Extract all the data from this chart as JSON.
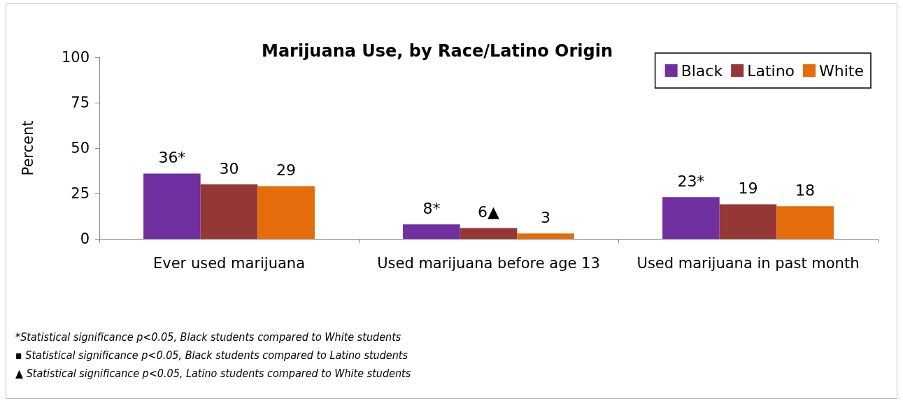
{
  "chart_data": {
    "type": "bar",
    "title": "Marijuana Use, by Race/Latino Origin",
    "ylabel": "Percent",
    "categories": [
      "Ever used marijuana",
      "Used marijuana before age 13",
      "Used marijuana in past month"
    ],
    "series": [
      {
        "name": "Black",
        "color": "#7030a0",
        "values": [
          36,
          8,
          23
        ],
        "value_labels": [
          "36*",
          "8*",
          "23*"
        ]
      },
      {
        "name": "Latino",
        "color": "#953735",
        "values": [
          30,
          6,
          19
        ],
        "value_labels": [
          "30",
          "6▲",
          "19"
        ]
      },
      {
        "name": "White",
        "color": "#e46c0a",
        "values": [
          29,
          3,
          18
        ],
        "value_labels": [
          "29",
          "3",
          "18"
        ]
      }
    ],
    "ylim": [
      0,
      100
    ],
    "yticks": [
      0,
      25,
      50,
      75,
      100
    ],
    "grid": false,
    "legend": "top right",
    "annotations": [
      "*Statistical significance p<0.05, Black students compared to White students",
      "▪ Statistical significance p<0.05, Black students compared to Latino students",
      "▲ Statistical significance p<0.05, Latino students compared to White students"
    ]
  }
}
